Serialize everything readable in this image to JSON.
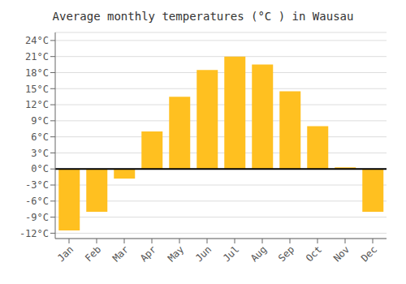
{
  "chart_data": {
    "type": "bar",
    "title": "Average monthly temperatures (°C ) in Wausau",
    "categories": [
      "Jan",
      "Feb",
      "Mar",
      "Apr",
      "May",
      "Jun",
      "Jul",
      "Aug",
      "Sep",
      "Oct",
      "Nov",
      "Dec"
    ],
    "values": [
      -11.5,
      -8.0,
      -1.8,
      7.0,
      13.5,
      18.5,
      21.0,
      19.5,
      14.5,
      8.0,
      0.3,
      -8.0
    ],
    "color": "#FFC020",
    "ylim": [
      -13,
      25.5
    ],
    "yticks": [
      {
        "value": -12,
        "label": "-12°C"
      },
      {
        "value": -9,
        "label": "-9°C"
      },
      {
        "value": -6,
        "label": "-6°C"
      },
      {
        "value": -3,
        "label": "-3°C"
      },
      {
        "value": 0,
        "label": "0°C"
      },
      {
        "value": 3,
        "label": "3°C"
      },
      {
        "value": 6,
        "label": "6°C"
      },
      {
        "value": 9,
        "label": "9°C"
      },
      {
        "value": 12,
        "label": "12°C"
      },
      {
        "value": 15,
        "label": "15°C"
      },
      {
        "value": 18,
        "label": "18°C"
      },
      {
        "value": 21,
        "label": "21°C"
      },
      {
        "value": 24,
        "label": "24°C"
      }
    ],
    "grid": true
  }
}
